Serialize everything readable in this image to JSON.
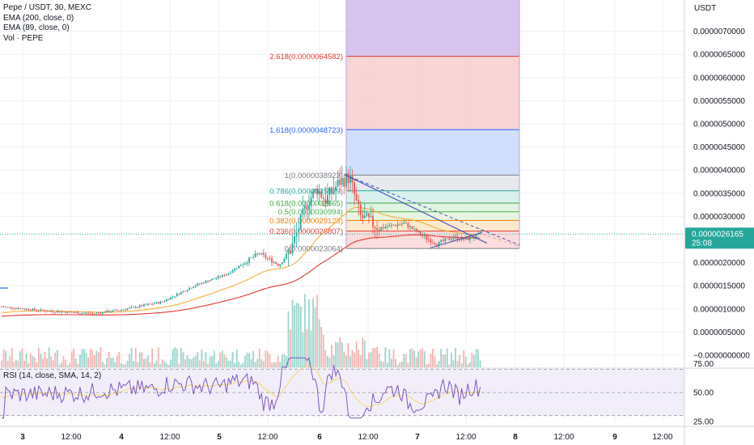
{
  "chart_data": {
    "type": "candlestick",
    "symbol_title": "Pepe / USDT, 30, MEXC",
    "indicators": [
      "EMA (200, close, 0)",
      "EMA (89, close, 0)",
      "Vol · PEPE"
    ],
    "currency": "USDT",
    "price_axis": {
      "ticks": [
        "0.0000070000",
        "0.0000065000",
        "0.0000060000",
        "0.0000055000",
        "0.0000050000",
        "0.0000045000",
        "0.0000040000",
        "0.0000035000",
        "0.0000030000",
        "0.0000025000",
        "0.0000020000",
        "0.0000015000",
        "0.0000010000",
        "0.0000005000",
        "−0.0000000000"
      ],
      "tick_values": [
        7.0,
        6.5,
        6.0,
        5.5,
        5.0,
        4.5,
        4.0,
        3.5,
        3.0,
        2.5,
        2.0,
        1.5,
        1.0,
        0.5,
        0.0
      ],
      "unit_scale": "1e-6",
      "current_price": "0.0000026165",
      "current_price_value": 2.6165,
      "countdown": "25:08"
    },
    "time_axis": {
      "labels": [
        "3",
        "12:00",
        "4",
        "12:00",
        "5",
        "12:00",
        "6",
        "12:00",
        "7",
        "12:00",
        "8",
        "12:00",
        "9",
        "12:00"
      ],
      "bold": [
        "3",
        "4",
        "5",
        "6",
        "7",
        "8",
        "9"
      ]
    },
    "fibonacci": {
      "levels": [
        {
          "label": "2.618(0.0000064582)",
          "value": 6.4582,
          "color": "#e53935"
        },
        {
          "label": "1.618(0.0000048723)",
          "value": 4.8723,
          "color": "#2962ff"
        },
        {
          "label": "1(0.0000038923)",
          "value": 3.8923,
          "color": "#787b86"
        },
        {
          "label": "0.786(0.0000035529)",
          "value": 3.5529,
          "color": "#26a69a"
        },
        {
          "label": "0.618(0.0000032865)",
          "value": 3.2865,
          "color": "#43a047"
        },
        {
          "label": "0.5(0.0000030994)",
          "value": 3.0994,
          "color": "#4caf50"
        },
        {
          "label": "0.382(0.0000029123)",
          "value": 2.9123,
          "color": "#f57c00"
        },
        {
          "label": "0.236(0.0000026807)",
          "value": 2.6807,
          "color": "#e53935"
        },
        {
          "label": "0(0.0000023064)",
          "value": 2.3064,
          "color": "#787b86"
        }
      ]
    },
    "rsi": {
      "label": "RSI (14, close, SMA, 14, 2)",
      "ticks": [
        "75.00",
        "50.00",
        "25.00"
      ],
      "tick_values": [
        75,
        50,
        25
      ],
      "bands": [
        70,
        50,
        30
      ]
    },
    "colors": {
      "up": "#26a69a",
      "down": "#ef5350",
      "ema200": "#e53935",
      "ema89": "#f5a623",
      "rsi_line": "#7e57c2",
      "rsi_ma": "#f5d76e",
      "trendline": "#3f51b5"
    }
  }
}
